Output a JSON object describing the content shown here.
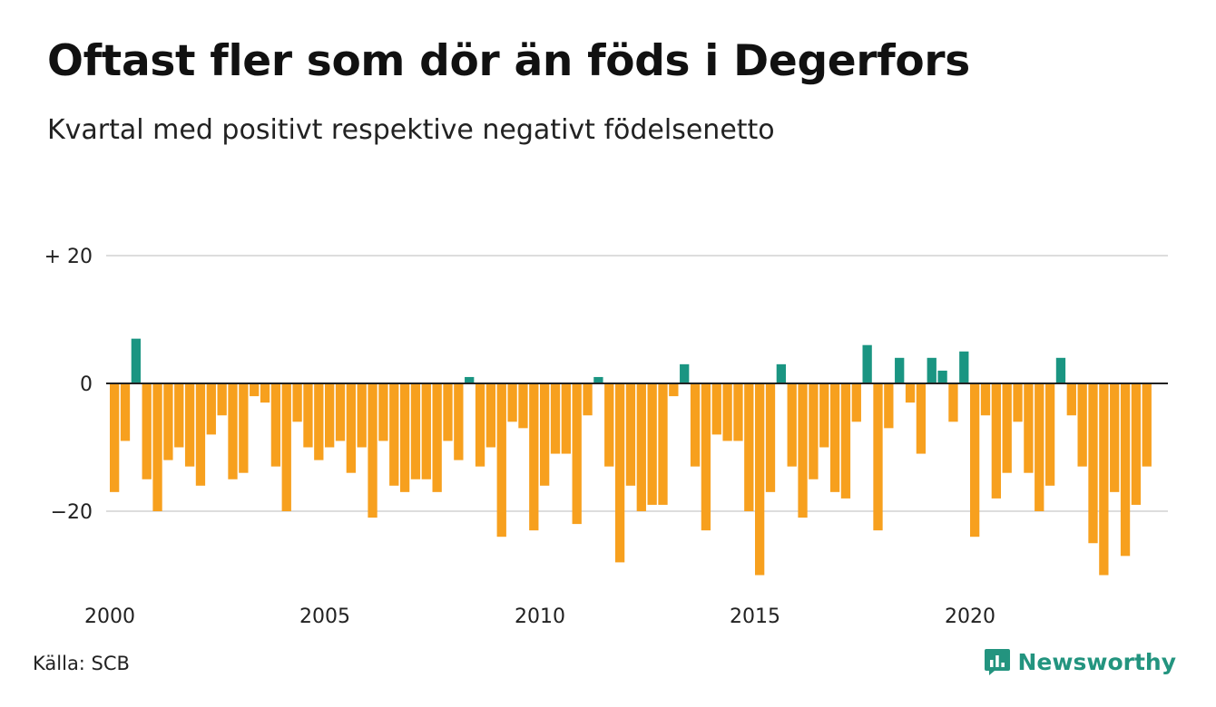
{
  "header": {
    "title": "Oftast fler som dör än föds i Degerfors",
    "subtitle": "Kvartal med positivt respektive negativt födelsenetto"
  },
  "footer": {
    "source": "Källa: SCB",
    "brand": "Newsworthy",
    "brand_icon": "bar-chart-speech-bubble-icon"
  },
  "colors": {
    "positive": "#1a9582",
    "negative": "#f7a01e",
    "grid": "#dddddd",
    "brand": "#23947f"
  },
  "chart_data": {
    "type": "bar",
    "title": "Oftast fler som dör än föds i Degerfors",
    "subtitle": "Kvartal med positivt respektive negativt födelsenetto",
    "xlabel": "",
    "ylabel": "",
    "x_ticks": [
      2000,
      2005,
      2010,
      2015,
      2020
    ],
    "x_range": [
      2000,
      2024.75
    ],
    "y_ticks": [
      {
        "value": 20,
        "label": "+ 20"
      },
      {
        "value": 0,
        "label": "0"
      },
      {
        "value": -20,
        "label": "−20"
      }
    ],
    "ylim": [
      -30,
      20
    ],
    "grid": true,
    "legend": "none",
    "start_year": 2000,
    "quarters_per_year": 4,
    "values": [
      -17,
      -9,
      7,
      -15,
      -20,
      -12,
      -10,
      -13,
      -16,
      -8,
      -5,
      -15,
      -14,
      -2,
      -3,
      -13,
      -20,
      -6,
      -10,
      -12,
      -10,
      -9,
      -14,
      -10,
      -21,
      -9,
      -16,
      -17,
      -15,
      -15,
      -17,
      -9,
      -12,
      1,
      -13,
      -10,
      -24,
      -6,
      -7,
      -23,
      -16,
      -11,
      -11,
      -22,
      -5,
      1,
      -13,
      -28,
      -16,
      -20,
      -19,
      -19,
      -2,
      3,
      -13,
      -23,
      -8,
      -9,
      -9,
      -20,
      -30,
      -17,
      3,
      -13,
      -21,
      -15,
      -10,
      -17,
      -18,
      -6,
      6,
      -23,
      -7,
      4,
      -3,
      -11,
      4,
      2,
      -6,
      5,
      -24,
      -5,
      -18,
      -14,
      -6,
      -14,
      -20,
      -16,
      4,
      -5,
      -13,
      -25,
      -30,
      -17,
      -27,
      -19,
      -13
    ]
  }
}
